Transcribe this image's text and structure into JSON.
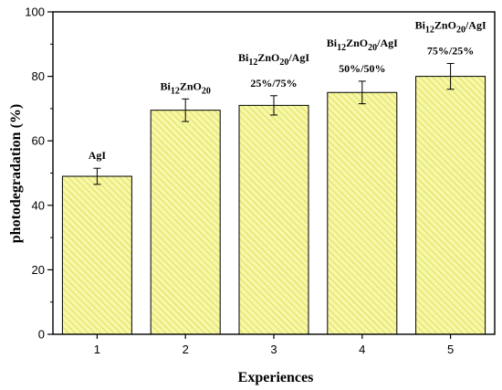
{
  "chart_data": {
    "type": "bar",
    "categories": [
      "1",
      "2",
      "3",
      "4",
      "5"
    ],
    "values": [
      49,
      69.5,
      71,
      75,
      80
    ],
    "errors": [
      2.5,
      3.5,
      3,
      3.5,
      4
    ],
    "bar_labels": [
      [
        {
          "segments": [
            {
              "t": "AgI"
            }
          ]
        }
      ],
      [
        {
          "segments": [
            {
              "t": "Bi"
            },
            {
              "t": "12",
              "sub": true
            },
            {
              "t": "ZnO"
            },
            {
              "t": "20",
              "sub": true
            }
          ]
        }
      ],
      [
        {
          "segments": [
            {
              "t": "Bi"
            },
            {
              "t": "12",
              "sub": true
            },
            {
              "t": "ZnO"
            },
            {
              "t": "20",
              "sub": true
            },
            {
              "t": "/AgI"
            }
          ]
        },
        {
          "segments": [
            {
              "t": "25%/75%"
            }
          ]
        }
      ],
      [
        {
          "segments": [
            {
              "t": "Bi"
            },
            {
              "t": "12",
              "sub": true
            },
            {
              "t": "ZnO"
            },
            {
              "t": "20",
              "sub": true
            },
            {
              "t": "/AgI"
            }
          ]
        },
        {
          "segments": [
            {
              "t": "50%/50%"
            }
          ]
        }
      ],
      [
        {
          "segments": [
            {
              "t": "Bi"
            },
            {
              "t": "12",
              "sub": true
            },
            {
              "t": "ZnO"
            },
            {
              "t": "20",
              "sub": true
            },
            {
              "t": "/AgI"
            }
          ]
        },
        {
          "segments": [
            {
              "t": "75%/25%"
            }
          ]
        }
      ]
    ],
    "xlabel": "Experiences",
    "ylabel": "photodegradation (%)",
    "ylim": [
      0,
      100
    ],
    "yticks": [
      0,
      20,
      40,
      60,
      80,
      100
    ],
    "grid": false,
    "colors": {
      "bar_fill": "#f7f7a8",
      "hatch": "#d9d94a",
      "edge": "#000000"
    }
  }
}
